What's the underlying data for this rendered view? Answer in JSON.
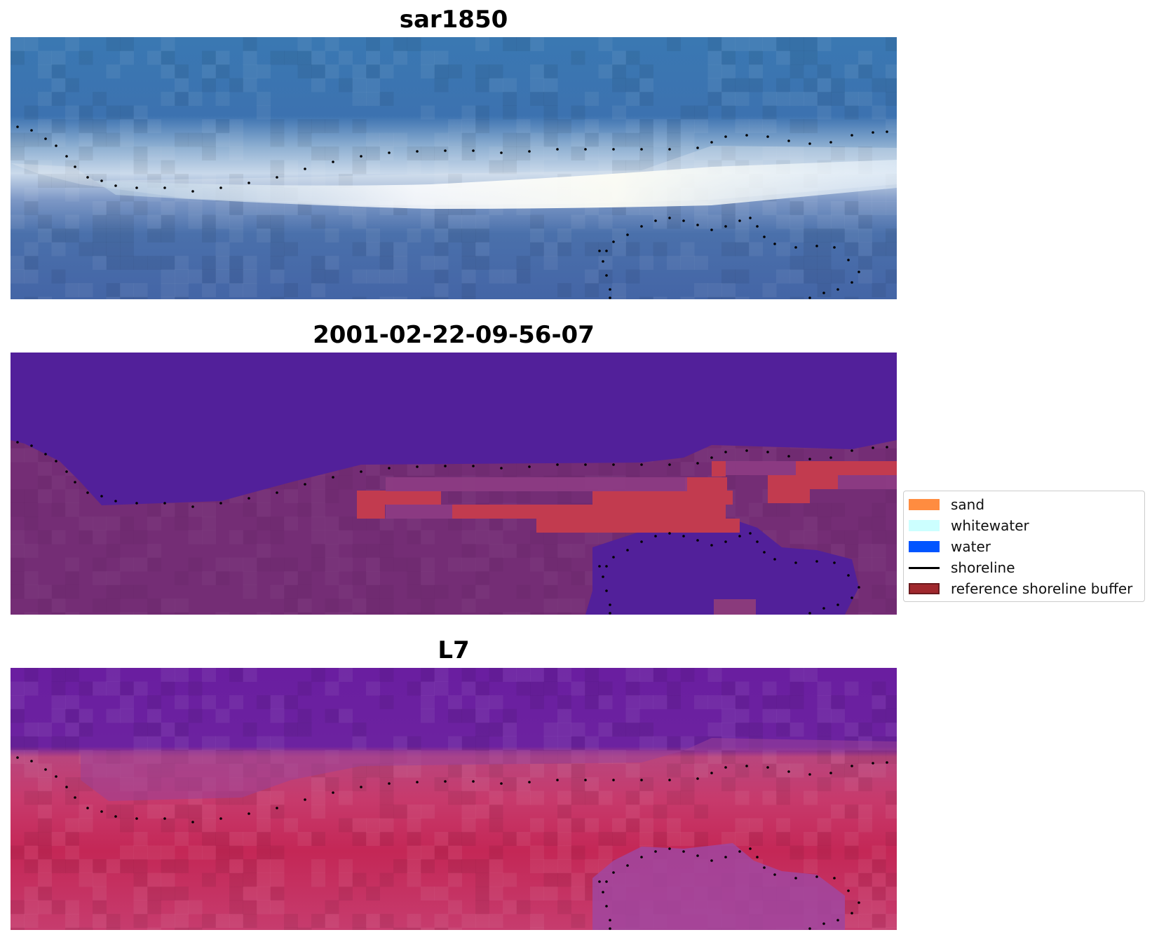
{
  "panels": [
    {
      "title": "sar1850",
      "kind": "rgb"
    },
    {
      "title": "2001-02-22-09-56-07",
      "kind": "classified"
    },
    {
      "title": "L7",
      "kind": "index"
    }
  ],
  "legend": {
    "items": [
      {
        "label": "sand",
        "color": "#ff8c40",
        "kind": "patch"
      },
      {
        "label": "whitewater",
        "color": "#ccffff",
        "kind": "patch"
      },
      {
        "label": "water",
        "color": "#0055ff",
        "kind": "patch"
      },
      {
        "label": "shoreline",
        "color": "#000000",
        "kind": "line"
      },
      {
        "label": "reference shoreline buffer",
        "color": "#a0282d",
        "kind": "patch"
      }
    ]
  },
  "colors": {
    "rgb_water": "#3b6fae",
    "rgb_surf": "#e8f0f5",
    "class_water": "#52209a",
    "class_land": "#742d75",
    "class_buffer": "#c23b4f",
    "index_water": "#6a1ea0",
    "index_land": "#c42756",
    "shoreline": "#000000"
  }
}
